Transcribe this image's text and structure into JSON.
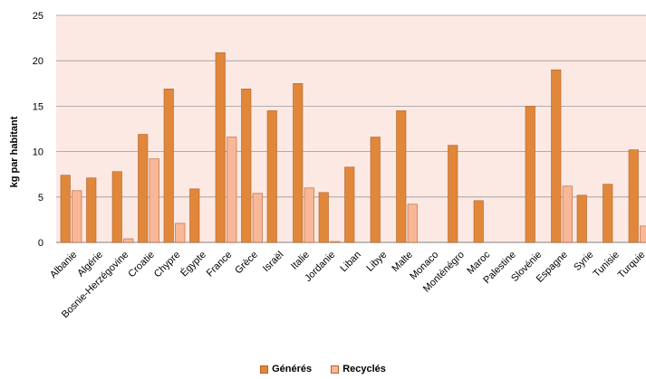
{
  "chart_data": {
    "type": "bar",
    "title": "",
    "xlabel": "",
    "ylabel": "kg par habitant",
    "ylim": [
      0,
      25
    ],
    "yticks": [
      0,
      5,
      10,
      15,
      20,
      25
    ],
    "grid": true,
    "legend_position": "bottom",
    "categories": [
      "Albanie",
      "Algérie",
      "Bosnie-Herzégovine",
      "Croatie",
      "Chypre",
      "Égypte",
      "France",
      "Grèce",
      "Israël",
      "Italie",
      "Jordanie",
      "Liban",
      "Libye",
      "Malte",
      "Monaco",
      "Monténégro",
      "Maroc",
      "Palestine",
      "Slovénie",
      "Espagne",
      "Syrie",
      "Tunisie",
      "Turquie"
    ],
    "series": [
      {
        "name": "Générés",
        "color": "#e0873a",
        "values": [
          7.4,
          7.1,
          7.8,
          11.9,
          16.9,
          5.9,
          20.9,
          16.9,
          14.5,
          17.5,
          5.5,
          8.3,
          11.6,
          14.5,
          null,
          10.7,
          4.6,
          null,
          15.0,
          19.0,
          5.2,
          6.4,
          10.2
        ]
      },
      {
        "name": "Recyclés",
        "color": "#f8b797",
        "values": [
          5.7,
          null,
          0.4,
          9.2,
          2.1,
          null,
          11.6,
          5.4,
          null,
          6.0,
          0.1,
          null,
          null,
          4.2,
          null,
          null,
          null,
          null,
          null,
          6.2,
          null,
          null,
          1.8
        ]
      }
    ]
  },
  "style": {
    "plot_background": "#fce9e4",
    "grid_color": "#999999",
    "bar_stroke": "#b5612a"
  }
}
